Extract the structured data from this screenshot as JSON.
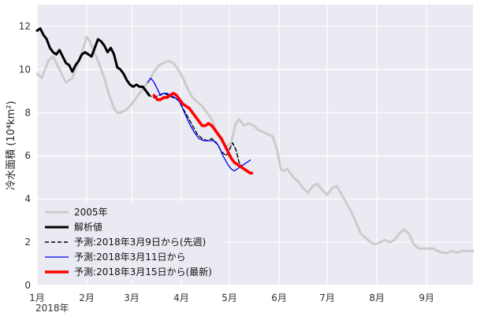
{
  "chart_data": {
    "type": "line",
    "ylabel": "冷水面積 (10⁴km²)",
    "ylim": [
      0,
      13
    ],
    "yticks": [
      0,
      2,
      4,
      6,
      8,
      10,
      12
    ],
    "xlim": [
      0,
      272
    ],
    "month_ticks": [
      {
        "label": "1月",
        "day": 0
      },
      {
        "label": "2月",
        "day": 31
      },
      {
        "label": "3月",
        "day": 59
      },
      {
        "label": "4月",
        "day": 90
      },
      {
        "label": "5月",
        "day": 120
      },
      {
        "label": "6月",
        "day": 151
      },
      {
        "label": "7月",
        "day": 181
      },
      {
        "label": "8月",
        "day": 212
      },
      {
        "label": "9月",
        "day": 243
      }
    ],
    "year_label": "2018年",
    "grid": true,
    "legend_position": "lower-left",
    "series": [
      {
        "name": "2005年",
        "color": "#cccccc",
        "dash": "solid",
        "days": [
          0,
          3,
          7,
          10,
          14,
          18,
          22,
          25,
          28,
          31,
          33,
          35,
          38,
          42,
          45,
          48,
          50,
          52,
          55,
          58,
          61,
          64,
          67,
          70,
          73,
          76,
          79,
          82,
          85,
          88,
          91,
          94,
          97,
          100,
          103,
          106,
          109,
          112,
          115,
          118,
          121,
          124,
          126,
          129,
          132,
          135,
          138,
          141,
          144,
          147,
          150,
          152,
          154,
          156,
          158,
          160,
          163,
          166,
          169,
          172,
          175,
          178,
          181,
          184,
          187,
          190,
          193,
          196,
          199,
          202,
          205,
          208,
          211,
          214,
          217,
          220,
          223,
          226,
          229,
          232,
          235,
          238,
          241,
          244,
          247,
          250,
          253,
          256,
          259,
          262,
          265,
          268,
          272
        ],
        "values": [
          9.8,
          9.6,
          10.4,
          10.6,
          10.0,
          9.4,
          9.6,
          10.2,
          10.8,
          11.5,
          11.3,
          10.9,
          10.4,
          9.6,
          8.8,
          8.2,
          8.0,
          8.0,
          8.1,
          8.3,
          8.6,
          8.9,
          9.2,
          9.5,
          9.9,
          10.2,
          10.3,
          10.4,
          10.3,
          10.0,
          9.6,
          9.1,
          8.7,
          8.5,
          8.3,
          8.0,
          7.7,
          7.1,
          6.7,
          6.4,
          6.6,
          7.5,
          7.7,
          7.4,
          7.5,
          7.4,
          7.2,
          7.1,
          7.0,
          6.9,
          6.2,
          5.4,
          5.3,
          5.4,
          5.2,
          5.0,
          4.8,
          4.5,
          4.3,
          4.6,
          4.7,
          4.4,
          4.2,
          4.5,
          4.6,
          4.2,
          3.8,
          3.4,
          2.9,
          2.4,
          2.2,
          2.0,
          1.9,
          2.0,
          2.1,
          2.0,
          2.1,
          2.4,
          2.6,
          2.4,
          1.9,
          1.7,
          1.7,
          1.7,
          1.7,
          1.6,
          1.5,
          1.5,
          1.6,
          1.5,
          1.6,
          1.6,
          1.6
        ]
      },
      {
        "name": "解析値",
        "color": "#000000",
        "dash": "solid",
        "days": [
          0,
          2,
          4,
          6,
          8,
          10,
          12,
          14,
          16,
          18,
          20,
          22,
          24,
          26,
          28,
          30,
          32,
          34,
          36,
          38,
          40,
          42,
          44,
          46,
          48,
          50,
          52,
          54,
          56,
          58,
          60,
          62,
          64,
          66,
          67,
          68,
          69,
          70
        ],
        "values": [
          11.8,
          11.9,
          11.6,
          11.4,
          11.0,
          10.8,
          10.7,
          10.9,
          10.6,
          10.3,
          10.2,
          9.9,
          10.2,
          10.4,
          10.7,
          10.8,
          10.7,
          10.6,
          11.0,
          11.4,
          11.3,
          11.1,
          10.8,
          11.0,
          10.7,
          10.1,
          10.0,
          9.8,
          9.5,
          9.3,
          9.2,
          9.3,
          9.2,
          9.2,
          9.1,
          9.0,
          8.9,
          8.8
        ]
      },
      {
        "name": "予測:2018年3月9日から(先週)",
        "color": "#000000",
        "dash": "dashed",
        "days": [
          67,
          70,
          73,
          76,
          79,
          82,
          85,
          88,
          91,
          94,
          97,
          100,
          103,
          106,
          109,
          112,
          115,
          118,
          120,
          122,
          124,
          126,
          128
        ],
        "values": [
          9.1,
          8.8,
          8.7,
          8.8,
          8.9,
          8.8,
          8.7,
          8.6,
          8.2,
          7.8,
          7.4,
          7.0,
          6.8,
          6.7,
          6.8,
          6.6,
          6.2,
          6.0,
          6.3,
          6.6,
          6.3,
          5.7,
          5.5
        ]
      },
      {
        "name": "予測:2018年3月11日から",
        "color": "#0000ff",
        "dash": "solid",
        "days": [
          69,
          71,
          73,
          75,
          77,
          79,
          81,
          83,
          86,
          89,
          92,
          95,
          98,
          101,
          104,
          107,
          110,
          113,
          116,
          119,
          121,
          123,
          125,
          127,
          129,
          131,
          133
        ],
        "values": [
          9.4,
          9.6,
          9.4,
          9.1,
          8.8,
          8.9,
          8.9,
          8.8,
          8.7,
          8.5,
          8.0,
          7.5,
          7.1,
          6.8,
          6.7,
          6.7,
          6.7,
          6.5,
          6.0,
          5.6,
          5.4,
          5.3,
          5.4,
          5.5,
          5.6,
          5.7,
          5.8
        ]
      },
      {
        "name": "予測:2018年3月15日から(最新)",
        "color": "#ff0000",
        "dash": "solid",
        "days": [
          73,
          75,
          77,
          79,
          81,
          83,
          85,
          87,
          89,
          91,
          93,
          95,
          97,
          99,
          101,
          103,
          105,
          107,
          109,
          111,
          113,
          115,
          117,
          119,
          121,
          123,
          125,
          127,
          129,
          131,
          133,
          134
        ],
        "values": [
          8.8,
          8.6,
          8.6,
          8.7,
          8.7,
          8.8,
          8.9,
          8.8,
          8.6,
          8.4,
          8.3,
          8.2,
          8.0,
          7.8,
          7.6,
          7.4,
          7.4,
          7.5,
          7.4,
          7.2,
          7.0,
          6.8,
          6.5,
          6.2,
          5.9,
          5.7,
          5.6,
          5.5,
          5.4,
          5.3,
          5.2,
          5.2
        ]
      }
    ]
  }
}
